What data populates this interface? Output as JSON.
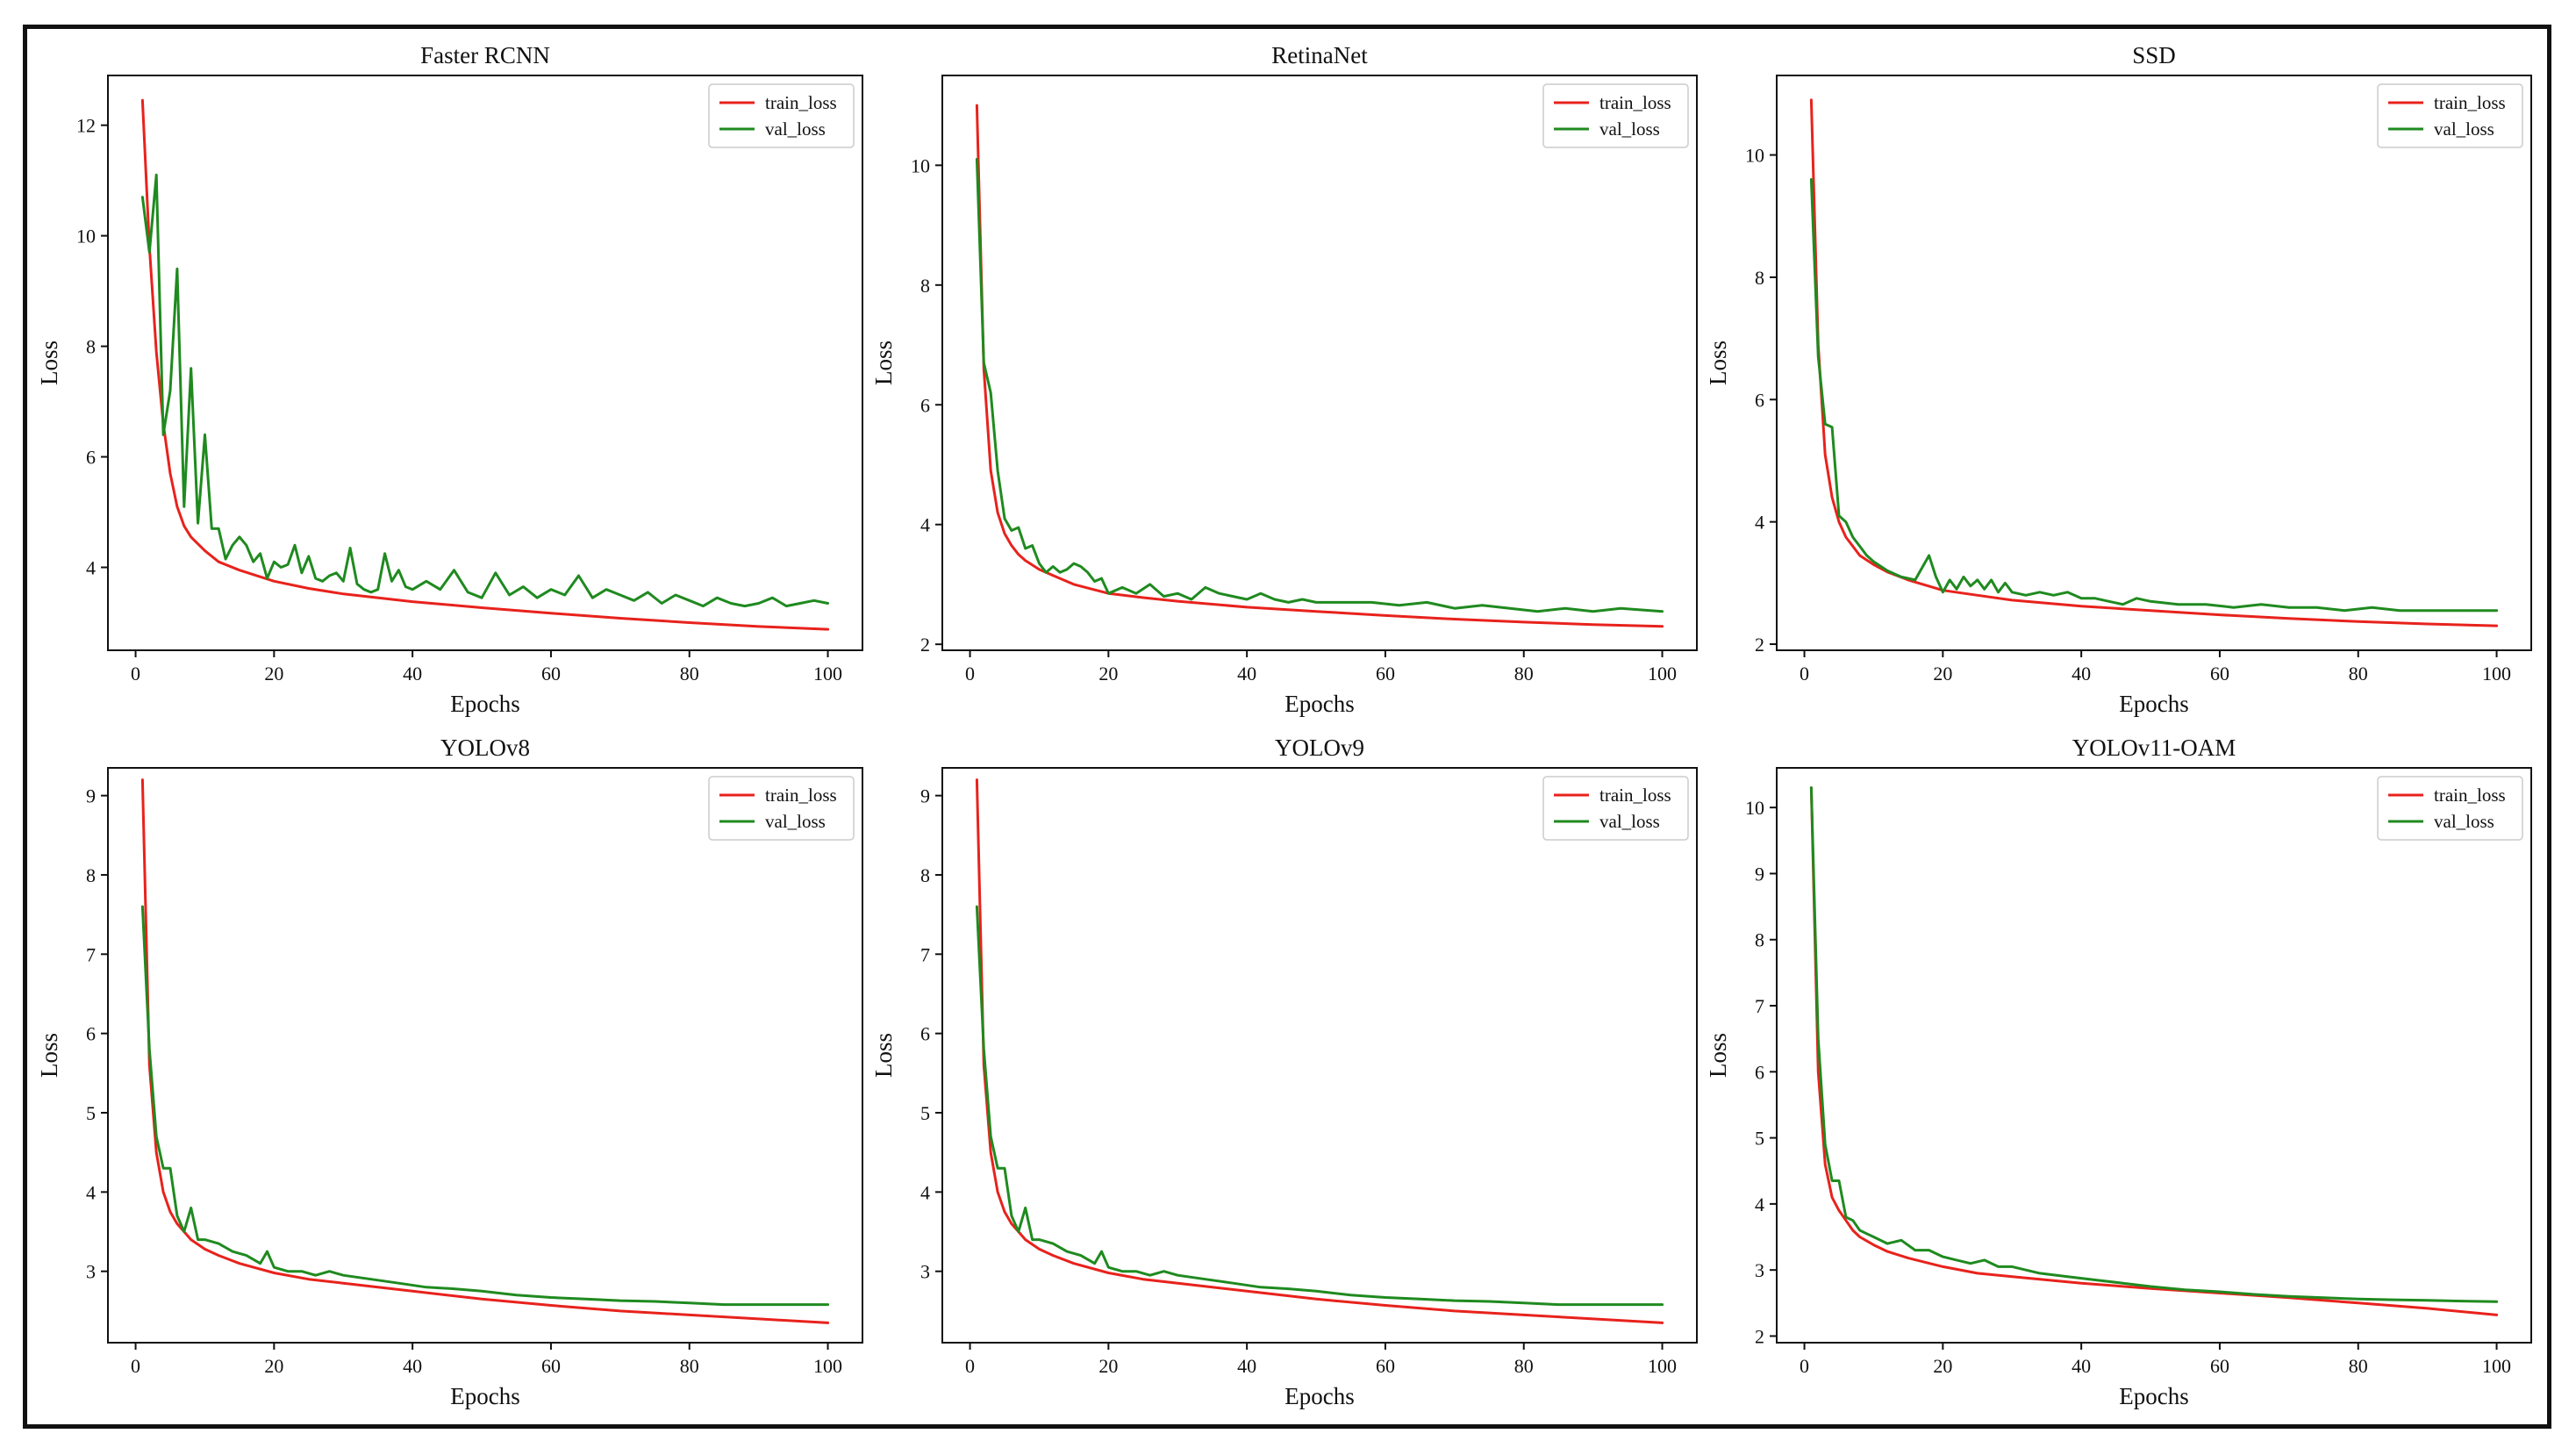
{
  "figure": {
    "colors": {
      "train": "#e8221c",
      "val": "#1f8a1f",
      "axes": "#111111",
      "frame": "#111111"
    }
  },
  "chart_data": [
    {
      "type": "line",
      "title": "Faster RCNN",
      "xlabel": "Epochs",
      "ylabel": "Loss",
      "xlim": [
        -4,
        105
      ],
      "ylim": [
        2.5,
        12.9
      ],
      "xticks": [
        0,
        20,
        40,
        60,
        80,
        100
      ],
      "yticks": [
        4,
        6,
        8,
        10,
        12
      ],
      "legend_position": "top-right",
      "series": [
        {
          "name": "train_loss",
          "color": "#e8221c",
          "x": [
            1,
            2,
            3,
            4,
            5,
            6,
            7,
            8,
            10,
            12,
            15,
            20,
            25,
            30,
            40,
            50,
            60,
            70,
            80,
            90,
            100
          ],
          "y": [
            12.45,
            9.8,
            7.9,
            6.6,
            5.7,
            5.1,
            4.75,
            4.55,
            4.3,
            4.1,
            3.95,
            3.75,
            3.62,
            3.52,
            3.38,
            3.27,
            3.17,
            3.08,
            3.0,
            2.93,
            2.88
          ]
        },
        {
          "name": "val_loss",
          "color": "#1f8a1f",
          "x": [
            1,
            2,
            3,
            4,
            5,
            6,
            7,
            8,
            9,
            10,
            11,
            12,
            13,
            14,
            15,
            16,
            17,
            18,
            19,
            20,
            21,
            22,
            23,
            24,
            25,
            26,
            27,
            28,
            29,
            30,
            31,
            32,
            33,
            34,
            35,
            36,
            37,
            38,
            39,
            40,
            42,
            44,
            46,
            48,
            50,
            52,
            54,
            56,
            58,
            60,
            62,
            64,
            66,
            68,
            70,
            72,
            74,
            76,
            78,
            80,
            82,
            84,
            86,
            88,
            90,
            92,
            94,
            96,
            98,
            100
          ],
          "y": [
            10.7,
            9.7,
            11.1,
            6.4,
            7.2,
            9.4,
            5.1,
            7.6,
            4.8,
            6.4,
            4.7,
            4.7,
            4.15,
            4.4,
            4.55,
            4.4,
            4.1,
            4.25,
            3.8,
            4.1,
            4.0,
            4.05,
            4.4,
            3.9,
            4.2,
            3.8,
            3.75,
            3.85,
            3.9,
            3.75,
            4.35,
            3.7,
            3.6,
            3.55,
            3.6,
            4.25,
            3.75,
            3.95,
            3.65,
            3.6,
            3.75,
            3.6,
            3.95,
            3.55,
            3.45,
            3.9,
            3.5,
            3.65,
            3.45,
            3.6,
            3.5,
            3.85,
            3.45,
            3.6,
            3.5,
            3.4,
            3.55,
            3.35,
            3.5,
            3.4,
            3.3,
            3.45,
            3.35,
            3.3,
            3.35,
            3.45,
            3.3,
            3.35,
            3.4,
            3.35
          ]
        }
      ]
    },
    {
      "type": "line",
      "title": "RetinaNet",
      "xlabel": "Epochs",
      "ylabel": "Loss",
      "xlim": [
        -4,
        105
      ],
      "ylim": [
        1.9,
        11.5
      ],
      "xticks": [
        0,
        20,
        40,
        60,
        80,
        100
      ],
      "yticks": [
        2,
        4,
        6,
        8,
        10
      ],
      "legend_position": "top-right",
      "series": [
        {
          "name": "train_loss",
          "color": "#e8221c",
          "x": [
            1,
            2,
            3,
            4,
            5,
            6,
            7,
            8,
            10,
            12,
            15,
            20,
            25,
            30,
            40,
            50,
            60,
            70,
            80,
            90,
            100
          ],
          "y": [
            11.0,
            6.6,
            4.9,
            4.2,
            3.85,
            3.65,
            3.5,
            3.4,
            3.25,
            3.15,
            3.0,
            2.85,
            2.78,
            2.72,
            2.62,
            2.55,
            2.48,
            2.42,
            2.37,
            2.33,
            2.3
          ]
        },
        {
          "name": "val_loss",
          "color": "#1f8a1f",
          "x": [
            1,
            2,
            3,
            4,
            5,
            6,
            7,
            8,
            9,
            10,
            11,
            12,
            13,
            14,
            15,
            16,
            17,
            18,
            19,
            20,
            22,
            24,
            26,
            28,
            30,
            32,
            34,
            36,
            38,
            40,
            42,
            44,
            46,
            48,
            50,
            54,
            58,
            62,
            66,
            70,
            74,
            78,
            82,
            86,
            90,
            94,
            100
          ],
          "y": [
            10.1,
            6.7,
            6.2,
            4.9,
            4.1,
            3.9,
            3.95,
            3.6,
            3.65,
            3.35,
            3.2,
            3.3,
            3.2,
            3.25,
            3.35,
            3.3,
            3.2,
            3.05,
            3.1,
            2.85,
            2.95,
            2.85,
            3.0,
            2.8,
            2.85,
            2.75,
            2.95,
            2.85,
            2.8,
            2.75,
            2.85,
            2.75,
            2.7,
            2.75,
            2.7,
            2.7,
            2.7,
            2.65,
            2.7,
            2.6,
            2.65,
            2.6,
            2.55,
            2.6,
            2.55,
            2.6,
            2.55
          ]
        }
      ]
    },
    {
      "type": "line",
      "title": "SSD",
      "xlabel": "Epochs",
      "ylabel": "Loss",
      "xlim": [
        -4,
        105
      ],
      "ylim": [
        1.9,
        11.3
      ],
      "xticks": [
        0,
        20,
        40,
        60,
        80,
        100
      ],
      "yticks": [
        2,
        4,
        6,
        8,
        10
      ],
      "legend_position": "top-right",
      "series": [
        {
          "name": "train_loss",
          "color": "#e8221c",
          "x": [
            1,
            2,
            3,
            4,
            5,
            6,
            7,
            8,
            10,
            12,
            15,
            20,
            25,
            30,
            40,
            50,
            60,
            70,
            80,
            90,
            100
          ],
          "y": [
            10.9,
            6.9,
            5.1,
            4.4,
            4.0,
            3.75,
            3.6,
            3.45,
            3.3,
            3.18,
            3.05,
            2.88,
            2.8,
            2.72,
            2.62,
            2.55,
            2.48,
            2.42,
            2.37,
            2.33,
            2.3
          ]
        },
        {
          "name": "val_loss",
          "color": "#1f8a1f",
          "x": [
            1,
            2,
            3,
            4,
            5,
            6,
            7,
            8,
            9,
            10,
            12,
            14,
            16,
            18,
            19,
            20,
            21,
            22,
            23,
            24,
            25,
            26,
            27,
            28,
            29,
            30,
            32,
            34,
            36,
            38,
            40,
            42,
            44,
            46,
            48,
            50,
            54,
            58,
            62,
            66,
            70,
            74,
            78,
            82,
            86,
            90,
            94,
            100
          ],
          "y": [
            9.6,
            6.7,
            5.6,
            5.55,
            4.1,
            4.0,
            3.75,
            3.6,
            3.45,
            3.35,
            3.2,
            3.1,
            3.05,
            3.45,
            3.1,
            2.85,
            3.05,
            2.9,
            3.1,
            2.95,
            3.05,
            2.9,
            3.05,
            2.85,
            3.0,
            2.85,
            2.8,
            2.85,
            2.8,
            2.85,
            2.75,
            2.75,
            2.7,
            2.65,
            2.75,
            2.7,
            2.65,
            2.65,
            2.6,
            2.65,
            2.6,
            2.6,
            2.55,
            2.6,
            2.55,
            2.55,
            2.55,
            2.55
          ]
        }
      ]
    },
    {
      "type": "line",
      "title": "YOLOv8",
      "xlabel": "Epochs",
      "ylabel": "Loss",
      "xlim": [
        -4,
        105
      ],
      "ylim": [
        2.1,
        9.35
      ],
      "xticks": [
        0,
        20,
        40,
        60,
        80,
        100
      ],
      "yticks": [
        3,
        4,
        5,
        6,
        7,
        8,
        9
      ],
      "legend_position": "top-right",
      "series": [
        {
          "name": "train_loss",
          "color": "#e8221c",
          "x": [
            1,
            2,
            3,
            4,
            5,
            6,
            7,
            8,
            10,
            12,
            15,
            20,
            25,
            30,
            40,
            50,
            60,
            70,
            80,
            90,
            100
          ],
          "y": [
            9.2,
            5.6,
            4.5,
            4.0,
            3.75,
            3.6,
            3.5,
            3.4,
            3.28,
            3.2,
            3.1,
            2.98,
            2.9,
            2.85,
            2.75,
            2.65,
            2.57,
            2.5,
            2.45,
            2.4,
            2.35
          ]
        },
        {
          "name": "val_loss",
          "color": "#1f8a1f",
          "x": [
            1,
            2,
            3,
            4,
            5,
            6,
            7,
            8,
            9,
            10,
            12,
            14,
            16,
            18,
            19,
            20,
            22,
            24,
            26,
            28,
            30,
            34,
            38,
            42,
            46,
            50,
            55,
            60,
            65,
            70,
            75,
            80,
            85,
            90,
            95,
            100
          ],
          "y": [
            7.6,
            5.8,
            4.7,
            4.3,
            4.3,
            3.7,
            3.5,
            3.8,
            3.4,
            3.4,
            3.35,
            3.25,
            3.2,
            3.1,
            3.25,
            3.05,
            3.0,
            3.0,
            2.95,
            3.0,
            2.95,
            2.9,
            2.85,
            2.8,
            2.78,
            2.75,
            2.7,
            2.67,
            2.65,
            2.63,
            2.62,
            2.6,
            2.58,
            2.58,
            2.58,
            2.58
          ]
        }
      ]
    },
    {
      "type": "line",
      "title": "YOLOv9",
      "xlabel": "Epochs",
      "ylabel": "Loss",
      "xlim": [
        -4,
        105
      ],
      "ylim": [
        2.1,
        9.35
      ],
      "xticks": [
        0,
        20,
        40,
        60,
        80,
        100
      ],
      "yticks": [
        3,
        4,
        5,
        6,
        7,
        8,
        9
      ],
      "legend_position": "top-right",
      "series": [
        {
          "name": "train_loss",
          "color": "#e8221c",
          "x": [
            1,
            2,
            3,
            4,
            5,
            6,
            7,
            8,
            10,
            12,
            15,
            20,
            25,
            30,
            40,
            50,
            60,
            70,
            80,
            90,
            100
          ],
          "y": [
            9.2,
            5.6,
            4.5,
            4.0,
            3.75,
            3.6,
            3.5,
            3.4,
            3.28,
            3.2,
            3.1,
            2.98,
            2.9,
            2.85,
            2.75,
            2.65,
            2.57,
            2.5,
            2.45,
            2.4,
            2.35
          ]
        },
        {
          "name": "val_loss",
          "color": "#1f8a1f",
          "x": [
            1,
            2,
            3,
            4,
            5,
            6,
            7,
            8,
            9,
            10,
            12,
            14,
            16,
            18,
            19,
            20,
            22,
            24,
            26,
            28,
            30,
            34,
            38,
            42,
            46,
            50,
            55,
            60,
            65,
            70,
            75,
            80,
            85,
            90,
            95,
            100
          ],
          "y": [
            7.6,
            5.8,
            4.7,
            4.3,
            4.3,
            3.7,
            3.5,
            3.8,
            3.4,
            3.4,
            3.35,
            3.25,
            3.2,
            3.1,
            3.25,
            3.05,
            3.0,
            3.0,
            2.95,
            3.0,
            2.95,
            2.9,
            2.85,
            2.8,
            2.78,
            2.75,
            2.7,
            2.67,
            2.65,
            2.63,
            2.62,
            2.6,
            2.58,
            2.58,
            2.58,
            2.58
          ]
        }
      ]
    },
    {
      "type": "line",
      "title": "YOLOv11-OAM",
      "xlabel": "Epochs",
      "ylabel": "Loss",
      "xlim": [
        -4,
        105
      ],
      "ylim": [
        1.9,
        10.6
      ],
      "xticks": [
        0,
        20,
        40,
        60,
        80,
        100
      ],
      "yticks": [
        2,
        3,
        4,
        5,
        6,
        7,
        8,
        9,
        10
      ],
      "legend_position": "top-right",
      "series": [
        {
          "name": "train_loss",
          "color": "#e8221c",
          "x": [
            1,
            2,
            3,
            4,
            5,
            6,
            7,
            8,
            10,
            12,
            15,
            20,
            25,
            30,
            40,
            50,
            60,
            70,
            80,
            90,
            100
          ],
          "y": [
            10.3,
            6.0,
            4.6,
            4.1,
            3.9,
            3.75,
            3.6,
            3.5,
            3.38,
            3.28,
            3.18,
            3.05,
            2.95,
            2.9,
            2.8,
            2.72,
            2.65,
            2.58,
            2.5,
            2.42,
            2.32
          ]
        },
        {
          "name": "val_loss",
          "color": "#1f8a1f",
          "x": [
            1,
            2,
            3,
            4,
            5,
            6,
            7,
            8,
            9,
            10,
            12,
            14,
            16,
            18,
            20,
            22,
            24,
            26,
            28,
            30,
            34,
            38,
            42,
            46,
            50,
            55,
            60,
            65,
            70,
            75,
            80,
            85,
            90,
            95,
            100
          ],
          "y": [
            10.3,
            6.5,
            4.9,
            4.35,
            4.35,
            3.8,
            3.75,
            3.6,
            3.55,
            3.5,
            3.4,
            3.45,
            3.3,
            3.3,
            3.2,
            3.15,
            3.1,
            3.15,
            3.05,
            3.05,
            2.95,
            2.9,
            2.85,
            2.8,
            2.75,
            2.7,
            2.67,
            2.63,
            2.6,
            2.58,
            2.56,
            2.55,
            2.54,
            2.53,
            2.52
          ]
        }
      ]
    }
  ]
}
